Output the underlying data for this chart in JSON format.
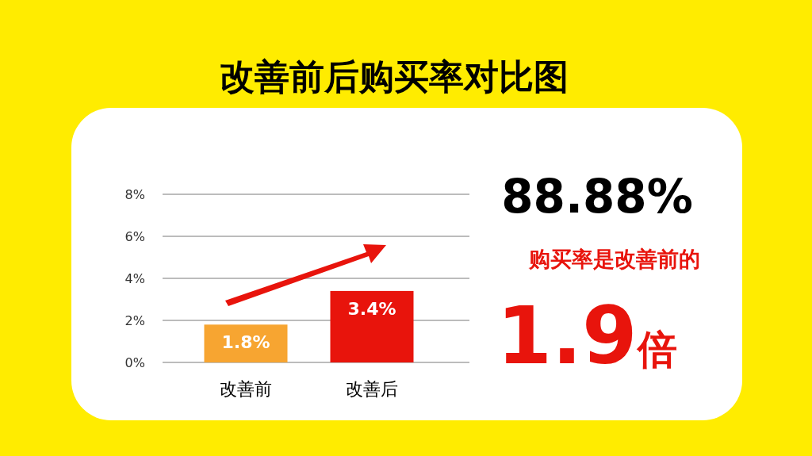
{
  "chart_data": {
    "type": "bar",
    "title": "改善前后购买率对比图",
    "categories": [
      "改善前",
      "改善后"
    ],
    "values": [
      1.8,
      3.4
    ],
    "colors": [
      "#f7a531",
      "#e8140c"
    ],
    "value_labels": [
      "1.8%",
      "3.4%"
    ],
    "ylim": [
      0,
      8
    ],
    "yticks": [
      {
        "value": 0,
        "label": "0%"
      },
      {
        "value": 2,
        "label": "2%"
      },
      {
        "value": 4,
        "label": "4%"
      },
      {
        "value": 6,
        "label": "6%"
      },
      {
        "value": 8,
        "label": "8%"
      }
    ],
    "grid": "y",
    "annotations": [
      "88.88%",
      "购买率是改善前的",
      "1.9倍"
    ]
  }
}
